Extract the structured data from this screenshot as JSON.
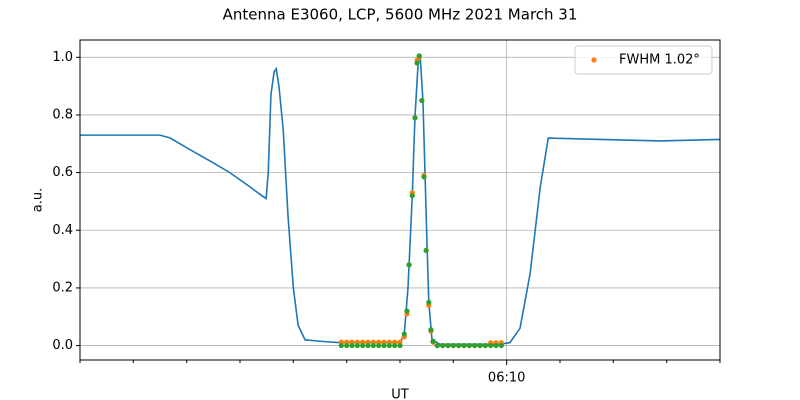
{
  "chart_data": {
    "type": "line",
    "title": "Antenna E3060, LCP, 5600 MHz 2021 March 31",
    "xlabel": "UT",
    "ylabel": "a.u.",
    "xlim": [
      362,
      374
    ],
    "xticks": [
      {
        "value": 370,
        "label": "06:10"
      }
    ],
    "xminorticks": [
      362,
      363,
      364,
      365,
      366,
      367,
      368,
      369,
      371,
      372,
      373,
      374
    ],
    "ylim": [
      -0.05,
      1.06
    ],
    "yticks": [
      {
        "value": 0,
        "label": "0.0"
      },
      0.2,
      0.4,
      0.6,
      0.8,
      {
        "value": 1,
        "label": "1.0"
      }
    ],
    "grid": true,
    "legend": "upper right",
    "series": [
      {
        "type": "line",
        "color": "#1f77b4",
        "x": [
          362,
          363.5,
          363.69,
          364.06,
          364.44,
          364.81,
          365.19,
          365.41,
          365.49,
          365.53,
          365.58,
          365.64,
          365.68,
          365.73,
          365.81,
          365.9,
          366.0,
          366.09,
          366.22,
          366.5,
          366.88,
          368.0,
          368.08,
          368.15,
          368.23,
          368.28,
          368.34,
          368.38,
          368.43,
          368.47,
          368.51,
          368.54,
          368.6,
          368.75,
          369.88,
          370.06,
          370.25,
          370.44,
          370.63,
          370.78,
          371.75,
          372.88,
          374
        ],
        "values": [
          0.73,
          0.73,
          0.72,
          0.68,
          0.64,
          0.6,
          0.55,
          0.52,
          0.51,
          0.6,
          0.87,
          0.95,
          0.96,
          0.9,
          0.75,
          0.45,
          0.2,
          0.07,
          0.02,
          0.015,
          0.01,
          0.01,
          0.04,
          0.2,
          0.52,
          0.79,
          0.98,
          1.0,
          0.85,
          0.59,
          0.33,
          0.15,
          0.02,
          0.005,
          0.005,
          0.01,
          0.06,
          0.25,
          0.55,
          0.72,
          0.715,
          0.71,
          0.715
        ]
      },
      {
        "type": "scatter",
        "name": "FWHM 1.02°",
        "color": "#ff7f0e",
        "x": [
          366.9,
          367.0,
          367.1,
          367.2,
          367.3,
          367.4,
          367.5,
          367.6,
          367.7,
          367.8,
          367.9,
          368.0,
          368.08,
          368.13,
          368.17,
          368.23,
          368.28,
          368.32,
          368.36,
          368.41,
          368.45,
          368.49,
          368.54,
          368.58,
          368.62,
          368.7,
          368.8,
          368.9,
          369.0,
          369.1,
          369.2,
          369.3,
          369.4,
          369.5,
          369.6,
          369.7,
          369.8,
          369.9
        ],
        "values": [
          0.012,
          0.012,
          0.012,
          0.012,
          0.012,
          0.012,
          0.012,
          0.012,
          0.012,
          0.012,
          0.012,
          0.012,
          0.03,
          0.11,
          0.28,
          0.53,
          0.79,
          0.99,
          1.0,
          0.85,
          0.59,
          0.33,
          0.14,
          0.05,
          0.012,
          0.0,
          0.0,
          0.0,
          0.0,
          0.0,
          0.0,
          0.0,
          0.0,
          0.0,
          0.0,
          0.01,
          0.01,
          0.01
        ]
      },
      {
        "type": "scatter",
        "color": "#2ca02c",
        "x": [
          366.9,
          367.0,
          367.1,
          367.2,
          367.3,
          367.4,
          367.5,
          367.6,
          367.7,
          367.8,
          367.9,
          368.0,
          368.08,
          368.13,
          368.17,
          368.23,
          368.28,
          368.32,
          368.36,
          368.41,
          368.45,
          368.49,
          368.54,
          368.58,
          368.62,
          368.7,
          368.8,
          368.9,
          369.0,
          369.1,
          369.2,
          369.3,
          369.4,
          369.5,
          369.6,
          369.7,
          369.8,
          369.9
        ],
        "values": [
          0.0,
          0.0,
          0.0,
          0.0,
          0.0,
          0.0,
          0.0,
          0.0,
          0.0,
          0.0,
          0.0,
          0.0,
          0.04,
          0.12,
          0.28,
          0.52,
          0.79,
          0.98,
          1.005,
          0.85,
          0.585,
          0.33,
          0.15,
          0.055,
          0.015,
          0.0,
          0.0,
          0.0,
          0.0,
          0.0,
          0.0,
          0.0,
          0.0,
          0.0,
          0.0,
          0.0,
          0.0,
          0.0
        ]
      }
    ]
  }
}
